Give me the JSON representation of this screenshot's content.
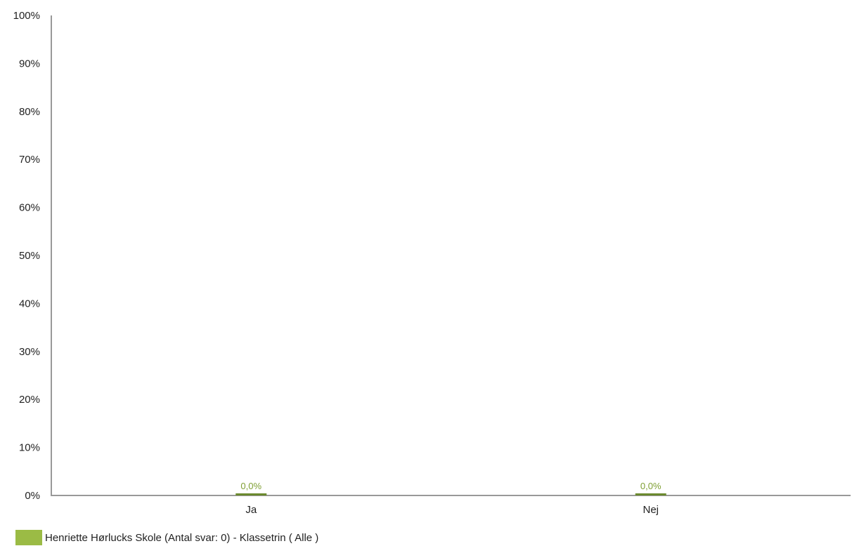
{
  "chart_data": {
    "type": "bar",
    "categories": [
      "Ja",
      "Nej"
    ],
    "series": [
      {
        "name": "Henriette Hørlucks Skole (Antal svar: 0)  - Klassetrin ( Alle )",
        "values": [
          0,
          0
        ],
        "data_labels": [
          "0,0%",
          "0,0%"
        ],
        "color": "#9bbb45",
        "bar_color": "#6b8a2e",
        "label_color": "#7f9f33"
      }
    ],
    "yticks": [
      "0%",
      "10%",
      "20%",
      "30%",
      "40%",
      "50%",
      "60%",
      "70%",
      "80%",
      "90%",
      "100%"
    ],
    "ylim": [
      0,
      100
    ],
    "grid": false,
    "legend_position": "bottom-left",
    "axis_color": "#999999"
  }
}
